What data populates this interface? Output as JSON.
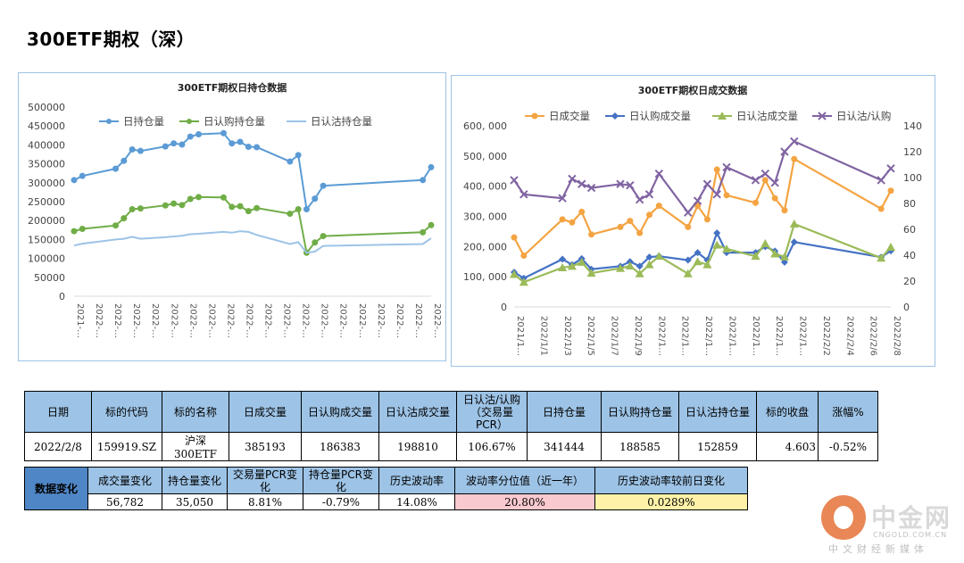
{
  "page": {
    "title": "300ETF期权（深）"
  },
  "chart_data": [
    {
      "type": "line",
      "title": "300ETF期权日持仓数据",
      "ylim": [
        0,
        500000
      ],
      "yticks": [
        "500000",
        "450000",
        "400000",
        "350000",
        "300000",
        "250000",
        "200000",
        "150000",
        "100000",
        "50000",
        "0"
      ],
      "xticks": [
        "2021-…",
        "2022-…",
        "2022-…",
        "2022-…",
        "2022-…",
        "2022-…",
        "2022-…",
        "2022-…",
        "2022-…",
        "2022-…",
        "2022-…",
        "2022-…",
        "2022-…",
        "2022-…",
        "2022-…",
        "2022-…",
        "2022-…",
        "2022-…",
        "2022-…",
        "2022-…"
      ],
      "legend_position": "top",
      "series": [
        {
          "name": "日持仓量",
          "color": "#5b9bd5",
          "marker": true,
          "points": [
            [
              0,
              307000
            ],
            [
              1,
              318000
            ],
            [
              5,
              337000
            ],
            [
              6,
              358000
            ],
            [
              7,
              388000
            ],
            [
              8,
              384000
            ],
            [
              11,
              396000
            ],
            [
              12,
              404000
            ],
            [
              13,
              401000
            ],
            [
              14,
              422000
            ],
            [
              15,
              428000
            ],
            [
              18,
              431000
            ],
            [
              19,
              404000
            ],
            [
              20,
              408000
            ],
            [
              21,
              395000
            ],
            [
              22,
              394000
            ],
            [
              26,
              356000
            ],
            [
              27,
              373000
            ],
            [
              28,
              230000
            ],
            [
              29,
              258000
            ],
            [
              30,
              292000
            ],
            [
              42,
              307000
            ],
            [
              43,
              341000
            ]
          ]
        },
        {
          "name": "日认购持仓量",
          "color": "#70ad47",
          "marker": true,
          "points": [
            [
              0,
              172000
            ],
            [
              1,
              178000
            ],
            [
              5,
              187000
            ],
            [
              6,
              206000
            ],
            [
              7,
              230000
            ],
            [
              8,
              232000
            ],
            [
              11,
              240000
            ],
            [
              12,
              245000
            ],
            [
              13,
              241000
            ],
            [
              14,
              257000
            ],
            [
              15,
              262000
            ],
            [
              18,
              261000
            ],
            [
              19,
              236000
            ],
            [
              20,
              238000
            ],
            [
              21,
              225000
            ],
            [
              22,
              233000
            ],
            [
              26,
              218000
            ],
            [
              27,
              230000
            ],
            [
              28,
              115000
            ],
            [
              29,
              142000
            ],
            [
              30,
              159000
            ],
            [
              42,
              169000
            ],
            [
              43,
              188000
            ]
          ]
        },
        {
          "name": "日认沽持仓量",
          "color": "#9dc3e6",
          "marker": false,
          "points": [
            [
              0,
              134000
            ],
            [
              1,
              139000
            ],
            [
              5,
              150000
            ],
            [
              6,
              152000
            ],
            [
              7,
              157000
            ],
            [
              8,
              152000
            ],
            [
              11,
              156000
            ],
            [
              12,
              158000
            ],
            [
              13,
              160000
            ],
            [
              14,
              164000
            ],
            [
              15,
              165000
            ],
            [
              18,
              170000
            ],
            [
              19,
              168000
            ],
            [
              20,
              172000
            ],
            [
              21,
              170000
            ],
            [
              22,
              162000
            ],
            [
              26,
              138000
            ],
            [
              27,
              143000
            ],
            [
              28,
              115000
            ],
            [
              29,
              118000
            ],
            [
              30,
              133000
            ],
            [
              42,
              138000
            ],
            [
              43,
              153000
            ]
          ]
        }
      ]
    },
    {
      "type": "line",
      "title": "300ETF期权日成交数据",
      "ylim": [
        0,
        600000
      ],
      "y2lim": [
        0,
        140
      ],
      "yticks": [
        "600, 000",
        "500, 000",
        "400, 000",
        "300, 000",
        "200, 000",
        "100, 000",
        "0"
      ],
      "y2ticks": [
        "140",
        "120",
        "100",
        "80",
        "60",
        "40",
        "20",
        "0"
      ],
      "xticks": [
        "2021/1…",
        "2022/1/1",
        "2022/1/3",
        "2022/1/5",
        "2022/1/7",
        "2022/1/9",
        "2022/1…",
        "2022/1…",
        "2022/1…",
        "2022/1…",
        "2022/1…",
        "2022/1…",
        "2022/1…",
        "2022/2/2",
        "2022/2/4",
        "2022/2/6",
        "2022/2/8"
      ],
      "legend_position": "top",
      "series": [
        {
          "name": "日成交量",
          "color": "#f4a442",
          "marker": "circle",
          "axis": "left",
          "points": [
            [
              0,
              230000
            ],
            [
              1,
              170000
            ],
            [
              5,
              290000
            ],
            [
              6,
              280000
            ],
            [
              7,
              315000
            ],
            [
              8,
              240000
            ],
            [
              11,
              265000
            ],
            [
              12,
              285000
            ],
            [
              13,
              245000
            ],
            [
              14,
              305000
            ],
            [
              15,
              335000
            ],
            [
              18,
              265000
            ],
            [
              19,
              335000
            ],
            [
              20,
              290000
            ],
            [
              21,
              455000
            ],
            [
              22,
              370000
            ],
            [
              25,
              345000
            ],
            [
              26,
              420000
            ],
            [
              27,
              360000
            ],
            [
              28,
              320000
            ],
            [
              29,
              490000
            ],
            [
              38,
              325000
            ],
            [
              39,
              385000
            ]
          ]
        },
        {
          "name": "日认购成交量",
          "color": "#4472c4",
          "marker": "diamond",
          "axis": "left",
          "points": [
            [
              0,
              115000
            ],
            [
              1,
              95000
            ],
            [
              5,
              158000
            ],
            [
              6,
              140000
            ],
            [
              7,
              160000
            ],
            [
              8,
              125000
            ],
            [
              11,
              135000
            ],
            [
              12,
              150000
            ],
            [
              13,
              135000
            ],
            [
              14,
              165000
            ],
            [
              15,
              168000
            ],
            [
              18,
              155000
            ],
            [
              19,
              180000
            ],
            [
              20,
              155000
            ],
            [
              21,
              245000
            ],
            [
              22,
              180000
            ],
            [
              25,
              180000
            ],
            [
              26,
              200000
            ],
            [
              27,
              185000
            ],
            [
              28,
              148000
            ],
            [
              29,
              215000
            ],
            [
              38,
              165000
            ],
            [
              39,
              186000
            ]
          ]
        },
        {
          "name": "日认沽成交量",
          "color": "#9bbb59",
          "marker": "triangle",
          "axis": "left",
          "points": [
            [
              0,
              108000
            ],
            [
              1,
              82000
            ],
            [
              5,
              130000
            ],
            [
              6,
              135000
            ],
            [
              7,
              148000
            ],
            [
              8,
              112000
            ],
            [
              11,
              128000
            ],
            [
              12,
              136000
            ],
            [
              13,
              110000
            ],
            [
              14,
              140000
            ],
            [
              15,
              168000
            ],
            [
              18,
              110000
            ],
            [
              19,
              150000
            ],
            [
              20,
              140000
            ],
            [
              21,
              205000
            ],
            [
              22,
              192000
            ],
            [
              25,
              168000
            ],
            [
              26,
              210000
            ],
            [
              27,
              176000
            ],
            [
              28,
              166000
            ],
            [
              29,
              275000
            ],
            [
              38,
              162000
            ],
            [
              39,
              198000
            ]
          ]
        },
        {
          "name": "日认沽/认购",
          "color": "#8064a2",
          "marker": "x",
          "axis": "right",
          "points": [
            [
              0,
              98
            ],
            [
              1,
              87
            ],
            [
              5,
              84
            ],
            [
              6,
              99
            ],
            [
              7,
              95
            ],
            [
              8,
              92
            ],
            [
              11,
              95
            ],
            [
              12,
              94
            ],
            [
              13,
              83
            ],
            [
              14,
              87
            ],
            [
              15,
              103
            ],
            [
              18,
              73
            ],
            [
              19,
              82
            ],
            [
              20,
              95
            ],
            [
              21,
              87
            ],
            [
              22,
              108
            ],
            [
              25,
              98
            ],
            [
              26,
              103
            ],
            [
              27,
              96
            ],
            [
              28,
              120
            ],
            [
              29,
              128
            ],
            [
              38,
              98
            ],
            [
              39,
              107
            ]
          ]
        }
      ]
    }
  ],
  "table1": {
    "headers": [
      "日期",
      "标的代码",
      "标的名称",
      "日成交量",
      "日认购成交量",
      "日认沽成交量",
      "日认沽/认购（交易量PCR）",
      "日持仓量",
      "日认购持仓量",
      "日认沽持仓量",
      "标的收盘",
      "涨幅%"
    ],
    "row": [
      "2022/2/8",
      "159919.SZ",
      "沪深300ETF",
      "385193",
      "186383",
      "198810",
      "106.67%",
      "341444",
      "188585",
      "152859",
      "4.603",
      "-0.52%"
    ]
  },
  "table2": {
    "label": "数据变化",
    "headers": [
      "成交量变化",
      "持仓量变化",
      "交易量PCR变化",
      "持仓量PCR变化",
      "历史波动率",
      "波动率分位值（近一年）",
      "历史波动率较前日变化"
    ],
    "row": [
      "56,782",
      "35,050",
      "8.81%",
      "-0.79%",
      "14.08%",
      "20.80%",
      "0.0289%"
    ]
  },
  "watermark": {
    "brand": "中金网",
    "url": "CNGOLD.COM.CN",
    "slogan": "中文财经新媒体",
    "logo_color": "#e46a2c"
  }
}
